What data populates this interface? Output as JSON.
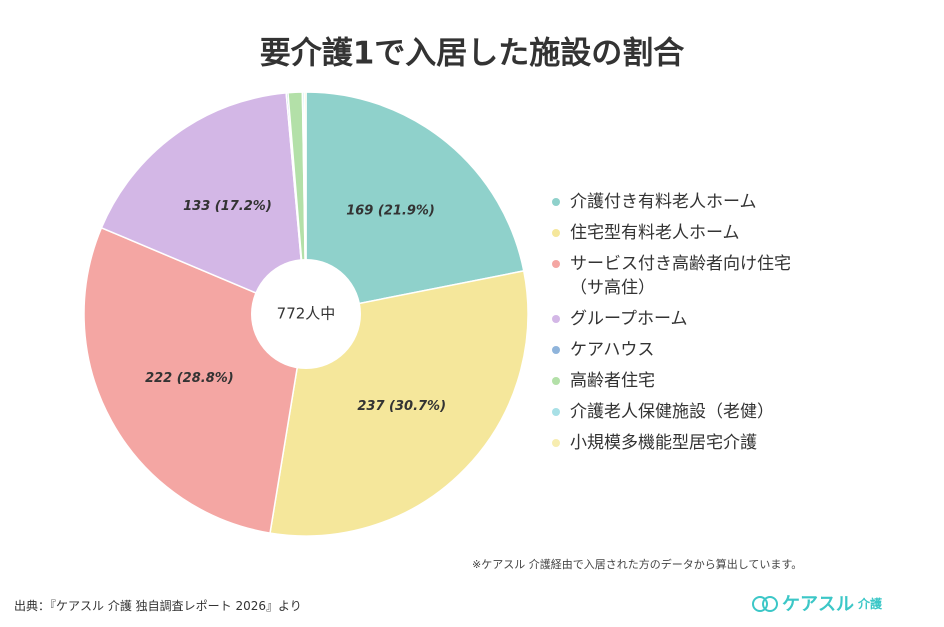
{
  "chart_data": {
    "type": "pie",
    "title": "要介護1で入居した施設の割合",
    "center_label": "772人中",
    "categories": [
      "介護付き有料老人ホーム",
      "住宅型有料老人ホーム",
      "サービス付き高齢者向け住宅（サ高住）",
      "グループホーム",
      "ケアハウス",
      "高齢者住宅",
      "介護老人保健施設（老健）",
      "小規模多機能型居宅介護"
    ],
    "values": [
      169,
      237,
      222,
      133,
      1,
      8,
      1,
      1
    ],
    "value_labels": [
      "169 (21.9%)",
      "237 (30.7%)",
      "222 (28.8%)",
      "133 (17.2%)",
      null,
      null,
      null,
      null
    ],
    "colors": [
      "#8fd1cb",
      "#f5e79b",
      "#f4a6a3",
      "#d3b7e6",
      "#8fb4db",
      "#b3e0a8",
      "#a8e0e6",
      "#f7edb0"
    ]
  },
  "note": "※ケアスル 介護経由で入居された方のデータから算出しています。",
  "source": "出典：『ケアスル 介護 独自調査レポート 2026』より",
  "logo": {
    "name": "ケアスル",
    "sub": "介護"
  }
}
